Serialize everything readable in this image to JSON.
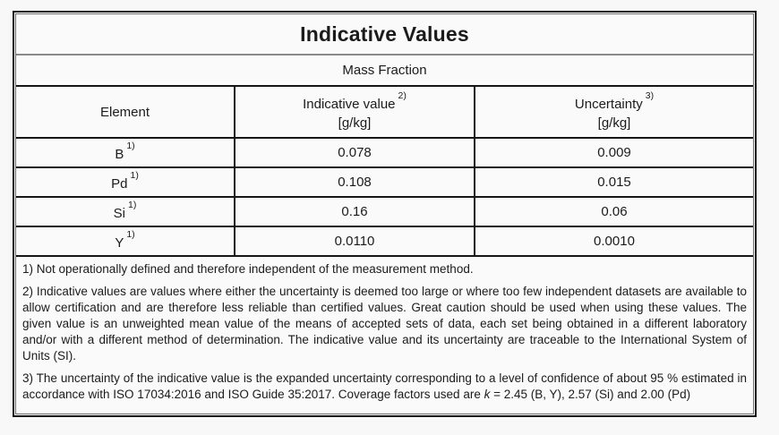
{
  "page": {
    "background": "#f8f8f8"
  },
  "colors": {
    "grid_line": "#161616",
    "title_divider": "#8a8a8a",
    "text": "#1b1b1b"
  },
  "table": {
    "title": "Indicative Values",
    "subtitle": "Mass Fraction",
    "columns": [
      {
        "label": "Element",
        "sup": "",
        "unit": ""
      },
      {
        "label": "Indicative value",
        "sup": "2)",
        "unit": "[g/kg]"
      },
      {
        "label": "Uncertainty",
        "sup": "3)",
        "unit": "[g/kg]"
      }
    ],
    "rows": [
      {
        "element": "B",
        "sup": "1)",
        "indicative_value": "0.078",
        "uncertainty": "0.009"
      },
      {
        "element": "Pd",
        "sup": "1)",
        "indicative_value": "0.108",
        "uncertainty": "0.015"
      },
      {
        "element": "Si",
        "sup": "1)",
        "indicative_value": "0.16",
        "uncertainty": "0.06"
      },
      {
        "element": "Y",
        "sup": "1)",
        "indicative_value": "0.0110",
        "uncertainty": "0.0010"
      }
    ],
    "footnotes": {
      "note1": "1) Not operationally defined and therefore independent of the measurement method.",
      "note2": "2) Indicative values are values where either the uncertainty is deemed too large or where too few independent datasets are available to allow certification and are therefore less reliable than certified values. Great caution should be used when using these values. The given value is an unweighted mean value of the means of accepted sets of data, each set being obtained in a different laboratory and/or with a different method of determination. The indicative value and its uncertainty are traceable to the International System of Units (SI).",
      "note3_pre": "3) The uncertainty of the indicative value is the expanded uncertainty corresponding to a level of confidence of about 95 % estimated in accordance with ISO 17034:2016 and ISO Guide 35:2017. Coverage factors used are ",
      "note3_k": "k",
      "note3_post": " = 2.45 (B, Y), 2.57 (Si) and 2.00 (Pd)"
    }
  }
}
